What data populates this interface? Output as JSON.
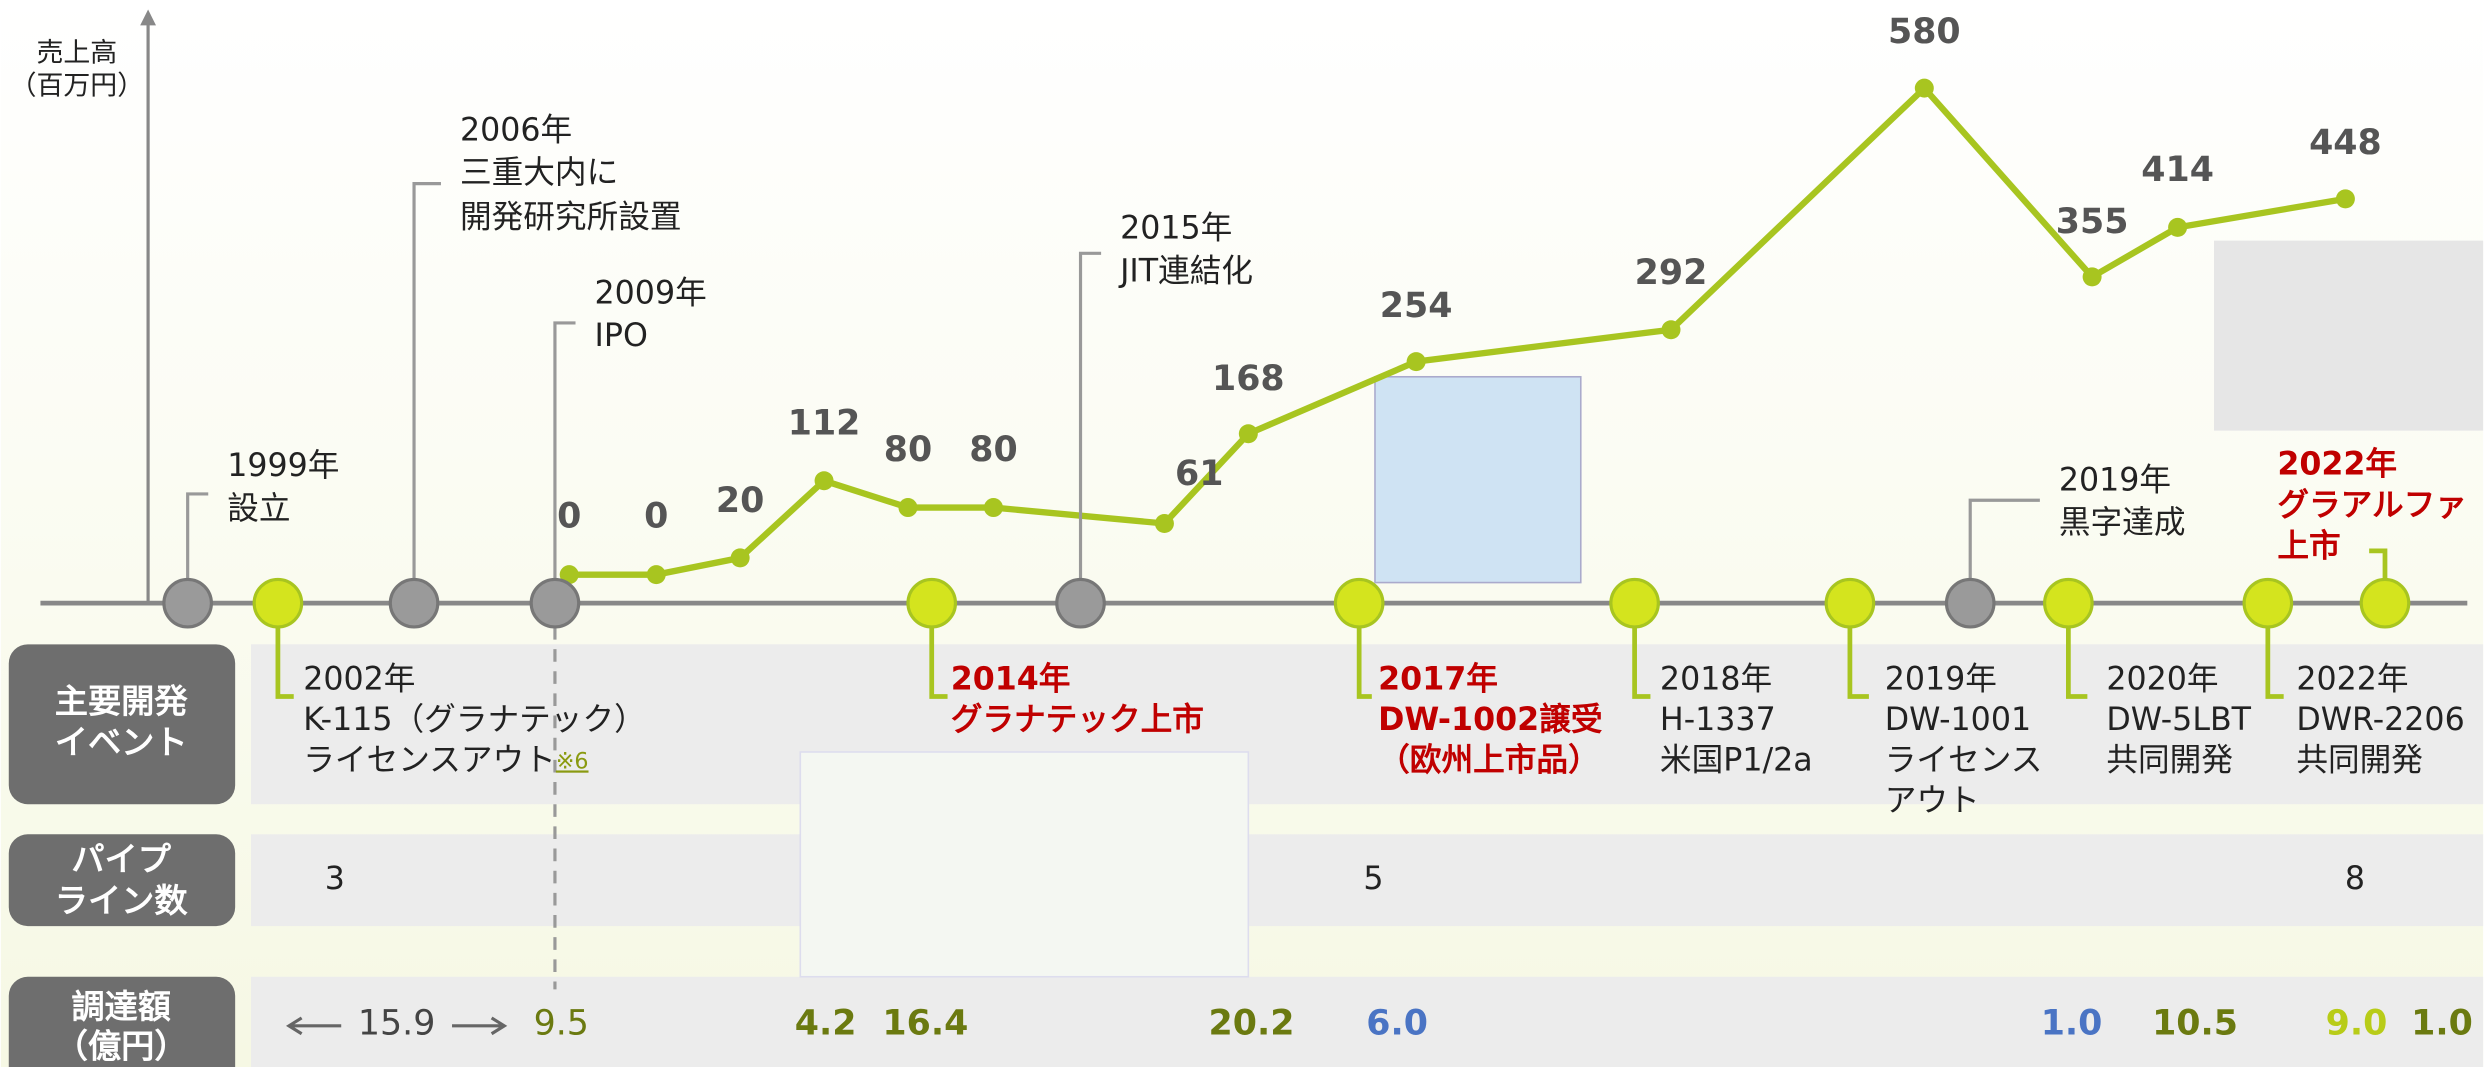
{
  "chart_data": {
    "type": "line",
    "y_label": [
      "売上高",
      "（百万円）"
    ],
    "categories": [
      null,
      null,
      null,
      null,
      null,
      null,
      null,
      null,
      null,
      null,
      null,
      null,
      null,
      null
    ],
    "values": [
      0,
      0,
      20,
      112,
      80,
      80,
      61,
      168,
      254,
      292,
      580,
      355,
      414,
      448
    ],
    "color": "#a8c520",
    "ylim": [
      0,
      670
    ]
  },
  "milestones": [
    {
      "lines": [
        "1999年",
        "設立"
      ]
    },
    {
      "lines": [
        "2006年",
        "三重大内に",
        "開発研究所設置"
      ]
    },
    {
      "lines": [
        "2009年",
        "IPO"
      ]
    },
    {
      "lines": [
        "2015年",
        "JIT連結化"
      ]
    },
    {
      "lines": [
        "2019年",
        "黒字達成"
      ]
    }
  ],
  "events": [
    {
      "lines": [
        "2002年",
        "K-115（グラナテック）",
        "ライセンスアウト"
      ],
      "note": "※6",
      "highlight": false
    },
    {
      "lines": [
        "2014年",
        "グラナテック上市"
      ],
      "highlight": true
    },
    {
      "lines": [
        "2017年",
        "DW-1002譲受",
        "（欧州上市品）"
      ],
      "highlight": true
    },
    {
      "lines": [
        "2018年",
        "H-1337",
        "米国P1/2a"
      ],
      "highlight": false
    },
    {
      "lines": [
        "2019年",
        "DW-1001",
        "ライセンス",
        "アウト"
      ],
      "highlight": false
    },
    {
      "lines": [
        "2020年",
        "DW-5LBT",
        "共同開発"
      ],
      "highlight": false
    },
    {
      "lines": [
        "2022年",
        "DWR-2206",
        "共同開発"
      ],
      "highlight": false
    },
    {
      "lines": [
        "2022年",
        "グラアルファ",
        "上市"
      ],
      "highlight": true
    }
  ],
  "rows": {
    "events": [
      "主要開発",
      "イベント"
    ],
    "pipeline": [
      "パイプ",
      "ライン数"
    ],
    "funding": [
      "調達額",
      "（億円）"
    ]
  },
  "pipeline": [
    "3",
    "5",
    "8"
  ],
  "funding": [
    "15.9",
    "9.5",
    "4.2",
    "16.4",
    "20.2",
    "6.0",
    "1.0",
    "10.5",
    "9.0",
    "1.0"
  ]
}
